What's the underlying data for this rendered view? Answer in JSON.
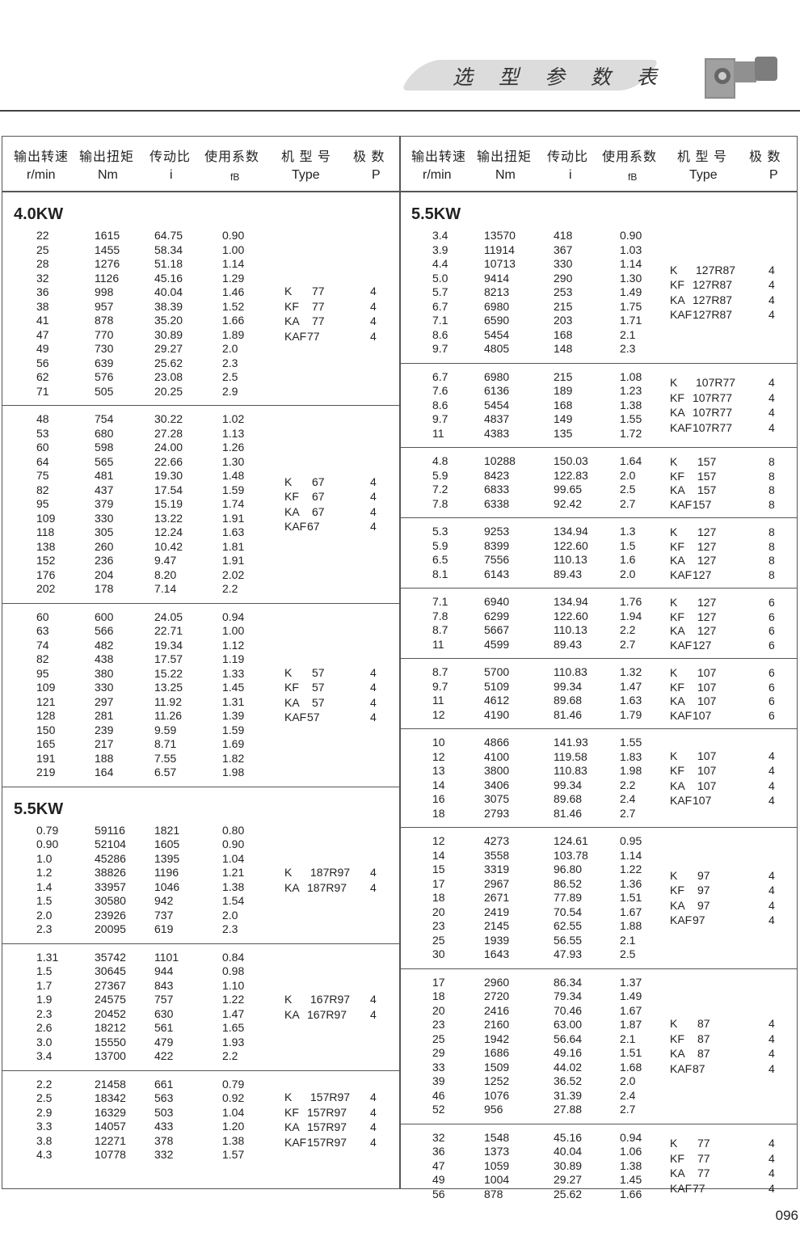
{
  "header": {
    "title": "选 型 参 数 表",
    "product_image": "k-series-helical-bevel-gearmotor"
  },
  "columns": [
    {
      "zh": "输出转速",
      "en": "r/min"
    },
    {
      "zh": "输出扭矩",
      "en": "Nm"
    },
    {
      "zh": "传动比",
      "en": "i"
    },
    {
      "zh": "使用系数",
      "en": "fB"
    },
    {
      "zh": "机 型 号",
      "en": "Type"
    },
    {
      "zh": "极  数",
      "en": "P"
    }
  ],
  "left": [
    {
      "kw": "4.0KW",
      "rows": [
        [
          "22",
          "1615",
          "64.75",
          "0.90"
        ],
        [
          "25",
          "1455",
          "58.34",
          "1.00"
        ],
        [
          "28",
          "1276",
          "51.18",
          "1.14"
        ],
        [
          "32",
          "1126",
          "45.16",
          "1.29"
        ],
        [
          "36",
          "998",
          "40.04",
          "1.46"
        ],
        [
          "38",
          "957",
          "38.39",
          "1.52"
        ],
        [
          "41",
          "878",
          "35.20",
          "1.66"
        ],
        [
          "47",
          "770",
          "30.89",
          "1.89"
        ],
        [
          "49",
          "730",
          "29.27",
          "2.0"
        ],
        [
          "56",
          "639",
          "25.62",
          "2.3"
        ],
        [
          "62",
          "576",
          "23.08",
          "2.5"
        ],
        [
          "71",
          "505",
          "20.25",
          "2.9"
        ]
      ],
      "types": [
        [
          "K",
          "77",
          "4"
        ],
        [
          "KF",
          "77",
          "4"
        ],
        [
          "KA",
          "77",
          "4"
        ],
        [
          "KAF",
          "77",
          "4"
        ]
      ]
    },
    {
      "rows": [
        [
          "48",
          "754",
          "30.22",
          "1.02"
        ],
        [
          "53",
          "680",
          "27.28",
          "1.13"
        ],
        [
          "60",
          "598",
          "24.00",
          "1.26"
        ],
        [
          "64",
          "565",
          "22.66",
          "1.30"
        ],
        [
          "75",
          "481",
          "19.30",
          "1.48"
        ],
        [
          "82",
          "437",
          "17.54",
          "1.59"
        ],
        [
          "95",
          "379",
          "15.19",
          "1.74"
        ],
        [
          "109",
          "330",
          "13.22",
          "1.91"
        ],
        [
          "118",
          "305",
          "12.24",
          "1.63"
        ],
        [
          "138",
          "260",
          "10.42",
          "1.81"
        ],
        [
          "152",
          "236",
          "9.47",
          "1.91"
        ],
        [
          "176",
          "204",
          "8.20",
          "2.02"
        ],
        [
          "202",
          "178",
          "7.14",
          "2.2"
        ]
      ],
      "types": [
        [
          "K",
          "67",
          "4"
        ],
        [
          "KF",
          "67",
          "4"
        ],
        [
          "KA",
          "67",
          "4"
        ],
        [
          "KAF",
          "67",
          "4"
        ]
      ]
    },
    {
      "rows": [
        [
          "60",
          "600",
          "24.05",
          "0.94"
        ],
        [
          "63",
          "566",
          "22.71",
          "1.00"
        ],
        [
          "74",
          "482",
          "19.34",
          "1.12"
        ],
        [
          "82",
          "438",
          "17.57",
          "1.19"
        ],
        [
          "95",
          "380",
          "15.22",
          "1.33"
        ],
        [
          "109",
          "330",
          "13.25",
          "1.45"
        ],
        [
          "121",
          "297",
          "11.92",
          "1.31"
        ],
        [
          "128",
          "281",
          "11.26",
          "1.39"
        ],
        [
          "150",
          "239",
          "9.59",
          "1.59"
        ],
        [
          "165",
          "217",
          "8.71",
          "1.69"
        ],
        [
          "191",
          "188",
          "7.55",
          "1.82"
        ],
        [
          "219",
          "164",
          "6.57",
          "1.98"
        ]
      ],
      "types": [
        [
          "K",
          "57",
          "4"
        ],
        [
          "KF",
          "57",
          "4"
        ],
        [
          "KA",
          "57",
          "4"
        ],
        [
          "KAF",
          "57",
          "4"
        ]
      ]
    },
    {
      "kw": "5.5KW",
      "rows": [
        [
          "0.79",
          "59116",
          "1821",
          "0.80"
        ],
        [
          "0.90",
          "52104",
          "1605",
          "0.90"
        ],
        [
          "1.0",
          "45286",
          "1395",
          "1.04"
        ],
        [
          "1.2",
          "38826",
          "1196",
          "1.21"
        ],
        [
          "1.4",
          "33957",
          "1046",
          "1.38"
        ],
        [
          "1.5",
          "30580",
          "942",
          "1.54"
        ],
        [
          "2.0",
          "23926",
          "737",
          "2.0"
        ],
        [
          "2.3",
          "20095",
          "619",
          "2.3"
        ]
      ],
      "types": [
        [
          "K",
          "187R97",
          "4"
        ],
        [
          "KA",
          "187R97",
          "4"
        ]
      ]
    },
    {
      "rows": [
        [
          "1.31",
          "35742",
          "1101",
          "0.84"
        ],
        [
          "1.5",
          "30645",
          "944",
          "0.98"
        ],
        [
          "1.7",
          "27367",
          "843",
          "1.10"
        ],
        [
          "1.9",
          "24575",
          "757",
          "1.22"
        ],
        [
          "2.3",
          "20452",
          "630",
          "1.47"
        ],
        [
          "2.6",
          "18212",
          "561",
          "1.65"
        ],
        [
          "3.0",
          "15550",
          "479",
          "1.93"
        ],
        [
          "3.4",
          "13700",
          "422",
          "2.2"
        ]
      ],
      "types": [
        [
          "K",
          "167R97",
          "4"
        ],
        [
          "KA",
          "167R97",
          "4"
        ]
      ]
    },
    {
      "rows": [
        [
          "2.2",
          "21458",
          "661",
          "0.79"
        ],
        [
          "2.5",
          "18342",
          "563",
          "0.92"
        ],
        [
          "2.9",
          "16329",
          "503",
          "1.04"
        ],
        [
          "3.3",
          "14057",
          "433",
          "1.20"
        ],
        [
          "3.8",
          "12271",
          "378",
          "1.38"
        ],
        [
          "4.3",
          "10778",
          "332",
          "1.57"
        ]
      ],
      "types": [
        [
          "K",
          "157R97",
          "4"
        ],
        [
          "KF",
          "157R97",
          "4"
        ],
        [
          "KA",
          "157R97",
          "4"
        ],
        [
          "KAF",
          "157R97",
          "4"
        ]
      ]
    }
  ],
  "right": [
    {
      "kw": "5.5KW",
      "rows": [
        [
          "3.4",
          "13570",
          "418",
          "0.90"
        ],
        [
          "3.9",
          "11914",
          "367",
          "1.03"
        ],
        [
          "4.4",
          "10713",
          "330",
          "1.14"
        ],
        [
          "5.0",
          "9414",
          "290",
          "1.30"
        ],
        [
          "5.7",
          "8213",
          "253",
          "1.49"
        ],
        [
          "6.7",
          "6980",
          "215",
          "1.75"
        ],
        [
          "7.1",
          "6590",
          "203",
          "1.71"
        ],
        [
          "8.6",
          "5454",
          "168",
          "2.1"
        ],
        [
          "9.7",
          "4805",
          "148",
          "2.3"
        ]
      ],
      "types": [
        [
          "K",
          "127R87",
          "4"
        ],
        [
          "KF",
          "127R87",
          "4"
        ],
        [
          "KA",
          "127R87",
          "4"
        ],
        [
          "KAF",
          "127R87",
          "4"
        ]
      ]
    },
    {
      "rows": [
        [
          "6.7",
          "6980",
          "215",
          "1.08"
        ],
        [
          "7.6",
          "6136",
          "189",
          "1.23"
        ],
        [
          "8.6",
          "5454",
          "168",
          "1.38"
        ],
        [
          "9.7",
          "4837",
          "149",
          "1.55"
        ],
        [
          "11",
          "4383",
          "135",
          "1.72"
        ]
      ],
      "types": [
        [
          "K",
          "107R77",
          "4"
        ],
        [
          "KF",
          "107R77",
          "4"
        ],
        [
          "KA",
          "107R77",
          "4"
        ],
        [
          "KAF",
          "107R77",
          "4"
        ]
      ]
    },
    {
      "rows": [
        [
          "4.8",
          "10288",
          "150.03",
          "1.64"
        ],
        [
          "5.9",
          "8423",
          "122.83",
          "2.0"
        ],
        [
          "7.2",
          "6833",
          "99.65",
          "2.5"
        ],
        [
          "7.8",
          "6338",
          "92.42",
          "2.7"
        ]
      ],
      "types": [
        [
          "K",
          "157",
          "8"
        ],
        [
          "KF",
          "157",
          "8"
        ],
        [
          "KA",
          "157",
          "8"
        ],
        [
          "KAF",
          "157",
          "8"
        ]
      ]
    },
    {
      "rows": [
        [
          "5.3",
          "9253",
          "134.94",
          "1.3"
        ],
        [
          "5.9",
          "8399",
          "122.60",
          "1.5"
        ],
        [
          "6.5",
          "7556",
          "110.13",
          "1.6"
        ],
        [
          "8.1",
          "6143",
          "89.43",
          "2.0"
        ]
      ],
      "types": [
        [
          "K",
          "127",
          "8"
        ],
        [
          "KF",
          "127",
          "8"
        ],
        [
          "KA",
          "127",
          "8"
        ],
        [
          "KAF",
          "127",
          "8"
        ]
      ]
    },
    {
      "rows": [
        [
          "7.1",
          "6940",
          "134.94",
          "1.76"
        ],
        [
          "7.8",
          "6299",
          "122.60",
          "1.94"
        ],
        [
          "8.7",
          "5667",
          "110.13",
          "2.2"
        ],
        [
          "11",
          "4599",
          "89.43",
          "2.7"
        ]
      ],
      "types": [
        [
          "K",
          "127",
          "6"
        ],
        [
          "KF",
          "127",
          "6"
        ],
        [
          "KA",
          "127",
          "6"
        ],
        [
          "KAF",
          "127",
          "6"
        ]
      ]
    },
    {
      "rows": [
        [
          "8.7",
          "5700",
          "110.83",
          "1.32"
        ],
        [
          "9.7",
          "5109",
          "99.34",
          "1.47"
        ],
        [
          "11",
          "4612",
          "89.68",
          "1.63"
        ],
        [
          "12",
          "4190",
          "81.46",
          "1.79"
        ]
      ],
      "types": [
        [
          "K",
          "107",
          "6"
        ],
        [
          "KF",
          "107",
          "6"
        ],
        [
          "KA",
          "107",
          "6"
        ],
        [
          "KAF",
          "107",
          "6"
        ]
      ]
    },
    {
      "rows": [
        [
          "10",
          "4866",
          "141.93",
          "1.55"
        ],
        [
          "12",
          "4100",
          "119.58",
          "1.83"
        ],
        [
          "13",
          "3800",
          "110.83",
          "1.98"
        ],
        [
          "14",
          "3406",
          "99.34",
          "2.2"
        ],
        [
          "16",
          "3075",
          "89.68",
          "2.4"
        ],
        [
          "18",
          "2793",
          "81.46",
          "2.7"
        ]
      ],
      "types": [
        [
          "K",
          "107",
          "4"
        ],
        [
          "KF",
          "107",
          "4"
        ],
        [
          "KA",
          "107",
          "4"
        ],
        [
          "KAF",
          "107",
          "4"
        ]
      ]
    },
    {
      "rows": [
        [
          "12",
          "4273",
          "124.61",
          "0.95"
        ],
        [
          "14",
          "3558",
          "103.78",
          "1.14"
        ],
        [
          "15",
          "3319",
          "96.80",
          "1.22"
        ],
        [
          "17",
          "2967",
          "86.52",
          "1.36"
        ],
        [
          "18",
          "2671",
          "77.89",
          "1.51"
        ],
        [
          "20",
          "2419",
          "70.54",
          "1.67"
        ],
        [
          "23",
          "2145",
          "62.55",
          "1.88"
        ],
        [
          "25",
          "1939",
          "56.55",
          "2.1"
        ],
        [
          "30",
          "1643",
          "47.93",
          "2.5"
        ]
      ],
      "types": [
        [
          "K",
          "97",
          "4"
        ],
        [
          "KF",
          "97",
          "4"
        ],
        [
          "KA",
          "97",
          "4"
        ],
        [
          "KAF",
          "97",
          "4"
        ]
      ]
    },
    {
      "rows": [
        [
          "17",
          "2960",
          "86.34",
          "1.37"
        ],
        [
          "18",
          "2720",
          "79.34",
          "1.49"
        ],
        [
          "20",
          "2416",
          "70.46",
          "1.67"
        ],
        [
          "23",
          "2160",
          "63.00",
          "1.87"
        ],
        [
          "25",
          "1942",
          "56.64",
          "2.1"
        ],
        [
          "29",
          "1686",
          "49.16",
          "1.51"
        ],
        [
          "33",
          "1509",
          "44.02",
          "1.68"
        ],
        [
          "39",
          "1252",
          "36.52",
          "2.0"
        ],
        [
          "46",
          "1076",
          "31.39",
          "2.4"
        ],
        [
          "52",
          "956",
          "27.88",
          "2.7"
        ]
      ],
      "types": [
        [
          "K",
          "87",
          "4"
        ],
        [
          "KF",
          "87",
          "4"
        ],
        [
          "KA",
          "87",
          "4"
        ],
        [
          "KAF",
          "87",
          "4"
        ]
      ]
    },
    {
      "rows": [
        [
          "32",
          "1548",
          "45.16",
          "0.94"
        ],
        [
          "36",
          "1373",
          "40.04",
          "1.06"
        ],
        [
          "47",
          "1059",
          "30.89",
          "1.38"
        ],
        [
          "49",
          "1004",
          "29.27",
          "1.45"
        ],
        [
          "56",
          "878",
          "25.62",
          "1.66"
        ]
      ],
      "types": [
        [
          "K",
          "77",
          "4"
        ],
        [
          "KF",
          "77",
          "4"
        ],
        [
          "KA",
          "77",
          "4"
        ],
        [
          "KAF",
          "77",
          "4"
        ]
      ]
    }
  ],
  "page_number": "096"
}
